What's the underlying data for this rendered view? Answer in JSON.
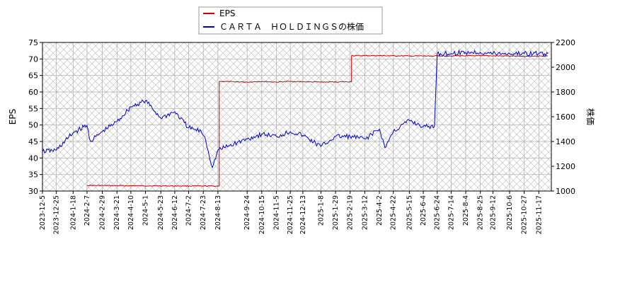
{
  "chart_data": {
    "type": "line",
    "legend_position": "top",
    "grid": true,
    "y_left": {
      "label": "EPS",
      "range": [
        30,
        75
      ],
      "ticks": [
        30,
        35,
        40,
        45,
        50,
        55,
        60,
        65,
        70,
        75
      ]
    },
    "y_right": {
      "label": "株価",
      "range": [
        1000,
        2200
      ],
      "ticks": [
        1000,
        1200,
        1400,
        1600,
        1800,
        2000,
        2200
      ]
    },
    "x_ticks": [
      "2023-12-5",
      "2023-12-25",
      "2024-1-18",
      "2024-2-7",
      "2024-2-29",
      "2024-3-21",
      "2024-4-10",
      "2024-5-1",
      "2024-5-23",
      "2024-6-12",
      "2024-7-2",
      "2024-7-23",
      "2024-8-13",
      "2024-9-24",
      "2024-10-15",
      "2024-11-5",
      "2024-11-25",
      "2024-12-13",
      "2025-1-8",
      "2025-1-29",
      "2025-2-19",
      "2025-3-12",
      "2025-4-2",
      "2025-4-22",
      "2025-5-15",
      "2025-6-4",
      "2025-6-24",
      "2025-7-14",
      "2025-8-4",
      "2025-8-25",
      "2025-9-12",
      "2025-10-6",
      "2025-10-27",
      "2025-11-17"
    ],
    "series": [
      {
        "name": "EPS",
        "axis": "left",
        "color": "#cc0000",
        "x": [
          "2024-2-7",
          "2024-4-10",
          "2024-7-23",
          "2024-8-13",
          "2024-8-15",
          "2024-9-24",
          "2024-10-15",
          "2024-11-5",
          "2024-11-25",
          "2024-12-13",
          "2025-1-8",
          "2025-2-19",
          "2025-2-21",
          "2025-4-2",
          "2025-5-15",
          "2025-6-24",
          "2025-8-25",
          "2025-10-27",
          "2025-11-30"
        ],
        "values": [
          31.7,
          31.6,
          31.5,
          31.5,
          63.2,
          63.0,
          63.2,
          63.0,
          63.2,
          63.1,
          63.0,
          63.1,
          71.0,
          71.0,
          70.9,
          70.9,
          71.0,
          70.8,
          70.9
        ]
      },
      {
        "name": "ＣＡＲＴＡ　ＨＯＬＤＩＮＧＳの株価",
        "axis": "right",
        "color": "#0000cc",
        "x": [
          "2023-12-5",
          "2023-12-25",
          "2024-1-18",
          "2024-2-7",
          "2024-2-12",
          "2024-2-29",
          "2024-3-21",
          "2024-4-10",
          "2024-5-1",
          "2024-5-23",
          "2024-6-12",
          "2024-7-2",
          "2024-7-20",
          "2024-7-25",
          "2024-8-5",
          "2024-8-13",
          "2024-9-5",
          "2024-9-24",
          "2024-10-15",
          "2024-11-5",
          "2024-11-25",
          "2024-12-13",
          "2025-1-8",
          "2025-1-29",
          "2025-2-19",
          "2025-3-12",
          "2025-4-2",
          "2025-4-10",
          "2025-4-22",
          "2025-5-15",
          "2025-6-4",
          "2025-6-20",
          "2025-6-24",
          "2025-7-14",
          "2025-8-4",
          "2025-8-25",
          "2025-9-12",
          "2025-10-6",
          "2025-10-27",
          "2025-11-30"
        ],
        "values": [
          1320,
          1330,
          1470,
          1530,
          1400,
          1480,
          1560,
          1680,
          1730,
          1590,
          1640,
          1510,
          1480,
          1440,
          1190,
          1330,
          1380,
          1420,
          1460,
          1440,
          1480,
          1450,
          1360,
          1440,
          1440,
          1420,
          1500,
          1350,
          1480,
          1570,
          1520,
          1520,
          2110,
          2110,
          2120,
          2120,
          2110,
          2110,
          2110,
          2110
        ]
      }
    ]
  }
}
